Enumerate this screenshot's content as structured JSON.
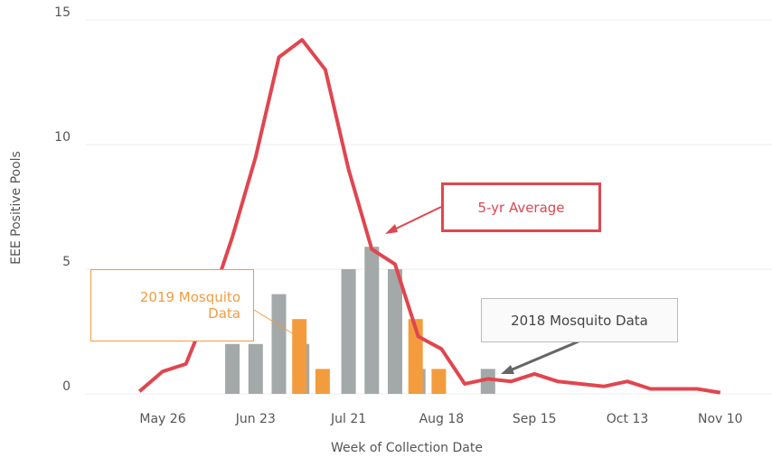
{
  "chart_data": {
    "type": "bar_line",
    "x_label": "Week of Collection Date",
    "y_label": "EEE Positive Pools",
    "categories": [
      null,
      "May 26",
      null,
      null,
      null,
      "Jun 23",
      null,
      null,
      null,
      "Jul 21",
      null,
      null,
      null,
      "Aug 18",
      null,
      null,
      null,
      "Sep 15",
      null,
      null,
      null,
      "Oct 13",
      null,
      null,
      null,
      "Nov 10"
    ],
    "series": [
      {
        "name": "2018 Mosquito Data",
        "kind": "bar",
        "color": "#a3a9a8",
        "values": [
          null,
          null,
          null,
          null,
          2,
          2,
          4,
          2,
          null,
          5,
          5.9,
          5,
          1,
          null,
          null,
          1,
          null,
          null,
          null,
          null,
          null,
          null,
          null,
          null,
          null,
          null
        ]
      },
      {
        "name": "2019 Mosquito Data",
        "kind": "bar",
        "color": "#f39c3e",
        "values": [
          null,
          null,
          null,
          null,
          null,
          null,
          null,
          3,
          1,
          null,
          null,
          null,
          3,
          1,
          null,
          null,
          null,
          null,
          null,
          null,
          null,
          null,
          null,
          null,
          null,
          null
        ]
      },
      {
        "name": "5-yr Average",
        "kind": "line",
        "color": "#e0464f",
        "values": [
          0.1,
          0.9,
          1.2,
          3.5,
          6.3,
          9.5,
          13.5,
          14.2,
          13,
          9,
          5.8,
          5.2,
          2.3,
          1.8,
          0.4,
          0.6,
          0.5,
          0.8,
          0.5,
          0.4,
          0.3,
          0.5,
          0.2,
          0.2,
          0.2,
          0.05
        ]
      }
    ],
    "ylim": [
      0,
      15
    ],
    "yticks": [
      0,
      5,
      10,
      15
    ],
    "grid": true
  }
}
